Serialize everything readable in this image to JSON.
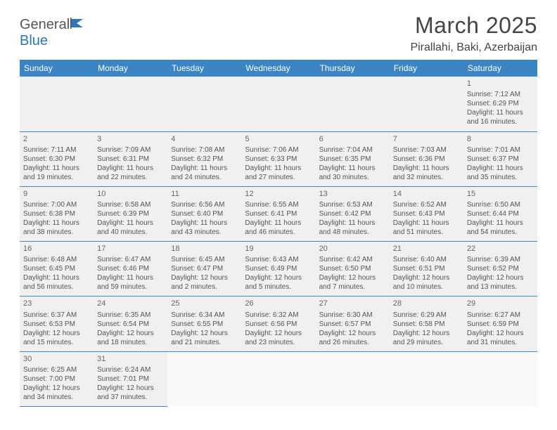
{
  "brand": {
    "part1": "General",
    "part2": "Blue"
  },
  "title": "March 2025",
  "location": "Pirallahi, Baki, Azerbaijan",
  "style": {
    "header_bg": "#3b85c5",
    "header_text": "#ffffff",
    "cell_bg": "#f0f0f0",
    "border_color": "#3b85c5",
    "body_font_size": 10,
    "daynum_color": "#666666",
    "text_color": "#555555",
    "title_color": "#444444"
  },
  "weekdays": [
    "Sunday",
    "Monday",
    "Tuesday",
    "Wednesday",
    "Thursday",
    "Friday",
    "Saturday"
  ],
  "cells": [
    [
      null,
      null,
      null,
      null,
      null,
      null,
      {
        "day": "1",
        "sunrise": "Sunrise: 7:12 AM",
        "sunset": "Sunset: 6:29 PM",
        "daylight": "Daylight: 11 hours and 16 minutes."
      }
    ],
    [
      {
        "day": "2",
        "sunrise": "Sunrise: 7:11 AM",
        "sunset": "Sunset: 6:30 PM",
        "daylight": "Daylight: 11 hours and 19 minutes."
      },
      {
        "day": "3",
        "sunrise": "Sunrise: 7:09 AM",
        "sunset": "Sunset: 6:31 PM",
        "daylight": "Daylight: 11 hours and 22 minutes."
      },
      {
        "day": "4",
        "sunrise": "Sunrise: 7:08 AM",
        "sunset": "Sunset: 6:32 PM",
        "daylight": "Daylight: 11 hours and 24 minutes."
      },
      {
        "day": "5",
        "sunrise": "Sunrise: 7:06 AM",
        "sunset": "Sunset: 6:33 PM",
        "daylight": "Daylight: 11 hours and 27 minutes."
      },
      {
        "day": "6",
        "sunrise": "Sunrise: 7:04 AM",
        "sunset": "Sunset: 6:35 PM",
        "daylight": "Daylight: 11 hours and 30 minutes."
      },
      {
        "day": "7",
        "sunrise": "Sunrise: 7:03 AM",
        "sunset": "Sunset: 6:36 PM",
        "daylight": "Daylight: 11 hours and 32 minutes."
      },
      {
        "day": "8",
        "sunrise": "Sunrise: 7:01 AM",
        "sunset": "Sunset: 6:37 PM",
        "daylight": "Daylight: 11 hours and 35 minutes."
      }
    ],
    [
      {
        "day": "9",
        "sunrise": "Sunrise: 7:00 AM",
        "sunset": "Sunset: 6:38 PM",
        "daylight": "Daylight: 11 hours and 38 minutes."
      },
      {
        "day": "10",
        "sunrise": "Sunrise: 6:58 AM",
        "sunset": "Sunset: 6:39 PM",
        "daylight": "Daylight: 11 hours and 40 minutes."
      },
      {
        "day": "11",
        "sunrise": "Sunrise: 6:56 AM",
        "sunset": "Sunset: 6:40 PM",
        "daylight": "Daylight: 11 hours and 43 minutes."
      },
      {
        "day": "12",
        "sunrise": "Sunrise: 6:55 AM",
        "sunset": "Sunset: 6:41 PM",
        "daylight": "Daylight: 11 hours and 46 minutes."
      },
      {
        "day": "13",
        "sunrise": "Sunrise: 6:53 AM",
        "sunset": "Sunset: 6:42 PM",
        "daylight": "Daylight: 11 hours and 48 minutes."
      },
      {
        "day": "14",
        "sunrise": "Sunrise: 6:52 AM",
        "sunset": "Sunset: 6:43 PM",
        "daylight": "Daylight: 11 hours and 51 minutes."
      },
      {
        "day": "15",
        "sunrise": "Sunrise: 6:50 AM",
        "sunset": "Sunset: 6:44 PM",
        "daylight": "Daylight: 11 hours and 54 minutes."
      }
    ],
    [
      {
        "day": "16",
        "sunrise": "Sunrise: 6:48 AM",
        "sunset": "Sunset: 6:45 PM",
        "daylight": "Daylight: 11 hours and 56 minutes."
      },
      {
        "day": "17",
        "sunrise": "Sunrise: 6:47 AM",
        "sunset": "Sunset: 6:46 PM",
        "daylight": "Daylight: 11 hours and 59 minutes."
      },
      {
        "day": "18",
        "sunrise": "Sunrise: 6:45 AM",
        "sunset": "Sunset: 6:47 PM",
        "daylight": "Daylight: 12 hours and 2 minutes."
      },
      {
        "day": "19",
        "sunrise": "Sunrise: 6:43 AM",
        "sunset": "Sunset: 6:49 PM",
        "daylight": "Daylight: 12 hours and 5 minutes."
      },
      {
        "day": "20",
        "sunrise": "Sunrise: 6:42 AM",
        "sunset": "Sunset: 6:50 PM",
        "daylight": "Daylight: 12 hours and 7 minutes."
      },
      {
        "day": "21",
        "sunrise": "Sunrise: 6:40 AM",
        "sunset": "Sunset: 6:51 PM",
        "daylight": "Daylight: 12 hours and 10 minutes."
      },
      {
        "day": "22",
        "sunrise": "Sunrise: 6:39 AM",
        "sunset": "Sunset: 6:52 PM",
        "daylight": "Daylight: 12 hours and 13 minutes."
      }
    ],
    [
      {
        "day": "23",
        "sunrise": "Sunrise: 6:37 AM",
        "sunset": "Sunset: 6:53 PM",
        "daylight": "Daylight: 12 hours and 15 minutes."
      },
      {
        "day": "24",
        "sunrise": "Sunrise: 6:35 AM",
        "sunset": "Sunset: 6:54 PM",
        "daylight": "Daylight: 12 hours and 18 minutes."
      },
      {
        "day": "25",
        "sunrise": "Sunrise: 6:34 AM",
        "sunset": "Sunset: 6:55 PM",
        "daylight": "Daylight: 12 hours and 21 minutes."
      },
      {
        "day": "26",
        "sunrise": "Sunrise: 6:32 AM",
        "sunset": "Sunset: 6:56 PM",
        "daylight": "Daylight: 12 hours and 23 minutes."
      },
      {
        "day": "27",
        "sunrise": "Sunrise: 6:30 AM",
        "sunset": "Sunset: 6:57 PM",
        "daylight": "Daylight: 12 hours and 26 minutes."
      },
      {
        "day": "28",
        "sunrise": "Sunrise: 6:29 AM",
        "sunset": "Sunset: 6:58 PM",
        "daylight": "Daylight: 12 hours and 29 minutes."
      },
      {
        "day": "29",
        "sunrise": "Sunrise: 6:27 AM",
        "sunset": "Sunset: 6:59 PM",
        "daylight": "Daylight: 12 hours and 31 minutes."
      }
    ],
    [
      {
        "day": "30",
        "sunrise": "Sunrise: 6:25 AM",
        "sunset": "Sunset: 7:00 PM",
        "daylight": "Daylight: 12 hours and 34 minutes."
      },
      {
        "day": "31",
        "sunrise": "Sunrise: 6:24 AM",
        "sunset": "Sunset: 7:01 PM",
        "daylight": "Daylight: 12 hours and 37 minutes."
      },
      null,
      null,
      null,
      null,
      null
    ]
  ]
}
